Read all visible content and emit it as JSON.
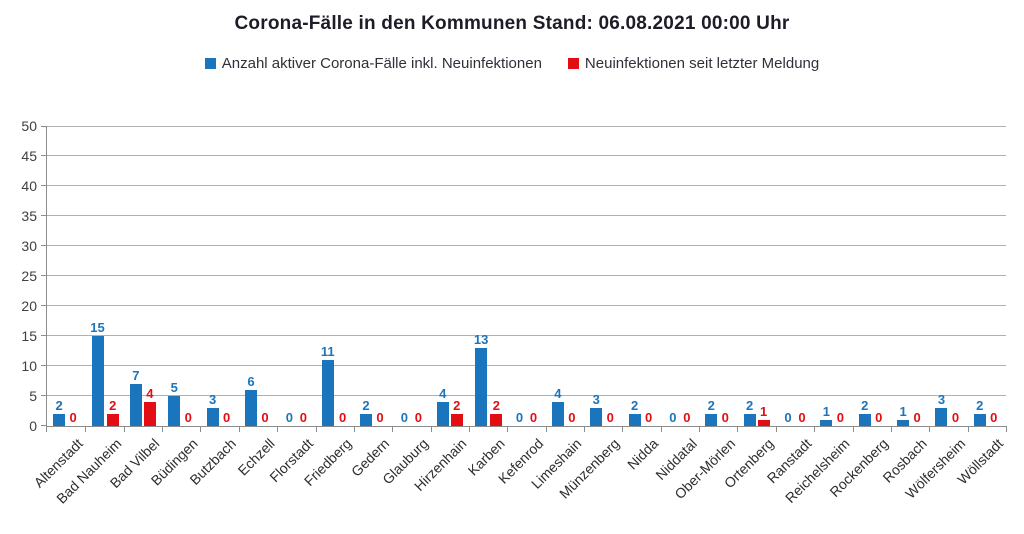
{
  "title": "Corona-Fälle in den Kommunen Stand: 06.08.2021 00:00 Uhr",
  "chart_data": {
    "type": "bar",
    "categories": [
      "Altenstadt",
      "Bad Nauheim",
      "Bad Vilbel",
      "Büdingen",
      "Butzbach",
      "Echzell",
      "Florstadt",
      "Friedberg",
      "Gedern",
      "Glauburg",
      "Hirzenhain",
      "Karben",
      "Kefenrod",
      "Limeshain",
      "Münzenberg",
      "Nidda",
      "Niddatal",
      "Ober-Mörlen",
      "Ortenberg",
      "Ranstadt",
      "Reichelsheim",
      "Rockenberg",
      "Rosbach",
      "Wölfersheim",
      "Wöllstadt"
    ],
    "series": [
      {
        "name": "Anzahl aktiver Corona-Fälle inkl. Neuinfektionen",
        "color": "#1b75bc",
        "values": [
          2,
          15,
          7,
          5,
          3,
          6,
          0,
          11,
          2,
          0,
          4,
          13,
          0,
          4,
          3,
          2,
          0,
          2,
          2,
          0,
          1,
          2,
          1,
          3,
          2
        ]
      },
      {
        "name": "Neuinfektionen seit letzter Meldung",
        "color": "#e30e13",
        "values": [
          0,
          2,
          4,
          0,
          0,
          0,
          0,
          0,
          0,
          0,
          2,
          2,
          0,
          0,
          0,
          0,
          0,
          0,
          1,
          0,
          0,
          0,
          0,
          0,
          0
        ]
      }
    ],
    "xlabel": "",
    "ylabel": "",
    "ylim": [
      0,
      50
    ],
    "yticks": [
      0,
      5,
      10,
      15,
      20,
      25,
      30,
      35,
      40,
      45,
      50
    ],
    "grid": true,
    "legend_position": "top",
    "value_labels": true
  }
}
